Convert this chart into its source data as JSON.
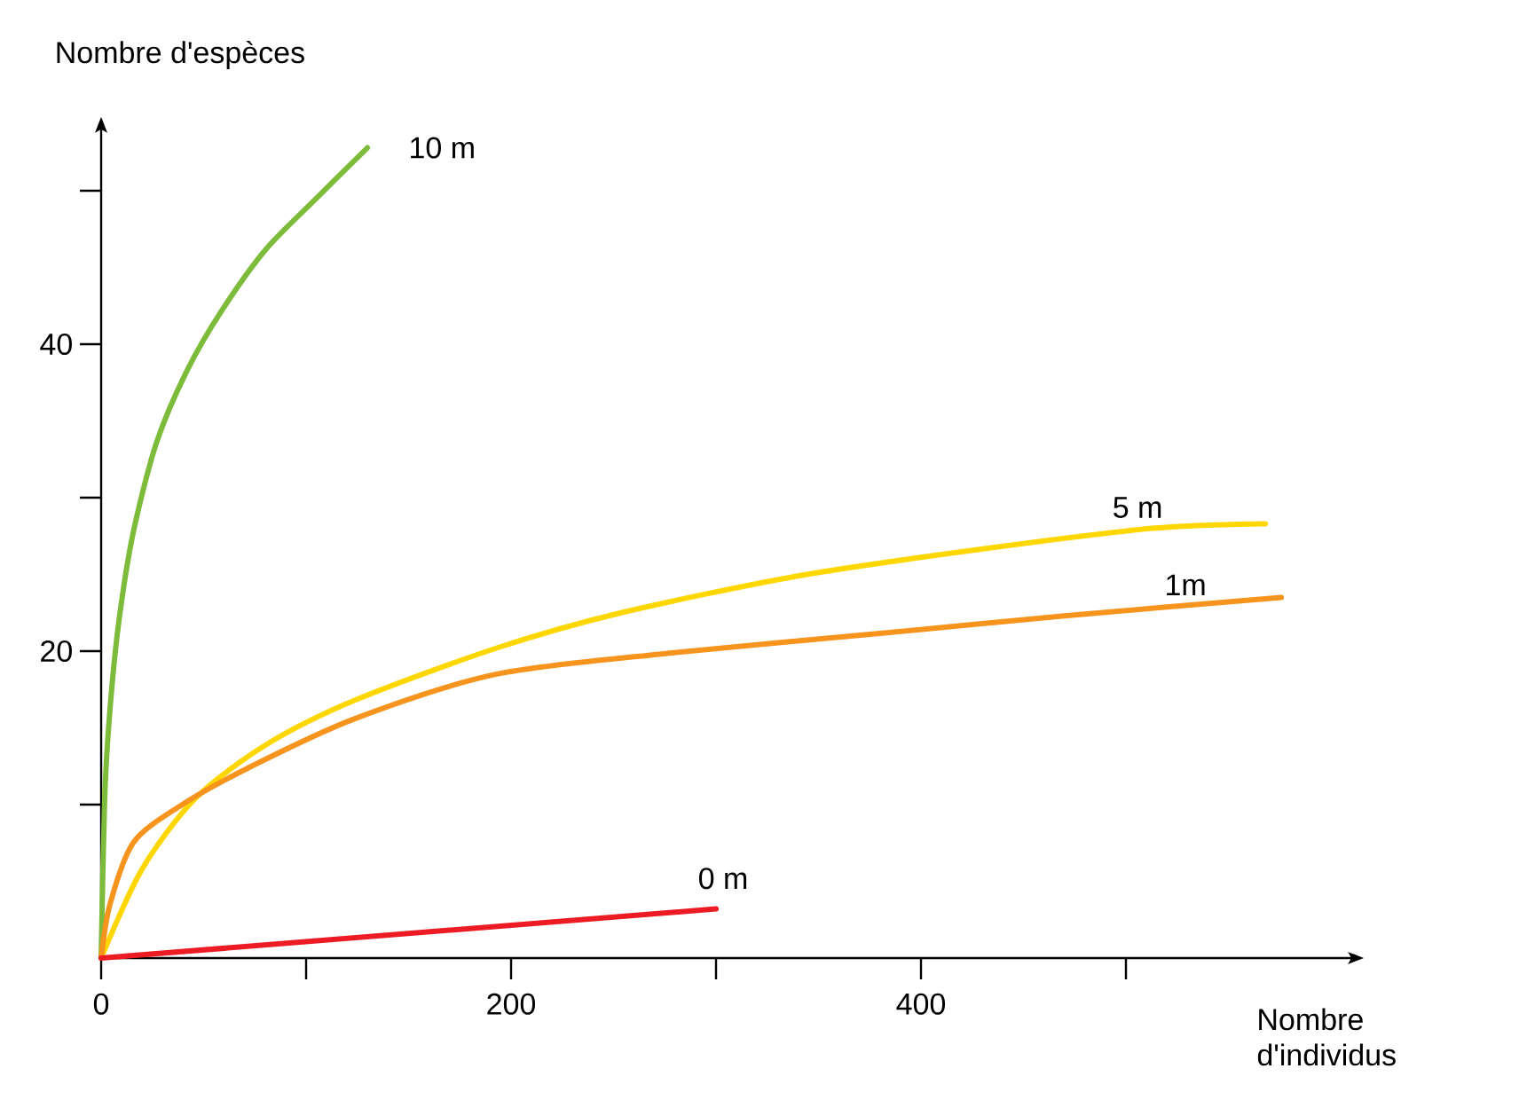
{
  "chart_data": {
    "type": "line",
    "xlabel": "Nombre d'individus",
    "ylabel": "Nombre d'espèces",
    "xlim": [
      0,
      610
    ],
    "ylim": [
      0,
      54
    ],
    "xticks": [
      0,
      {
        "value": 100,
        "label": null
      },
      200,
      {
        "value": 300,
        "label": null
      },
      400,
      {
        "value": 500,
        "label": null
      }
    ],
    "yticks": [
      {
        "value": 10,
        "label": null
      },
      20,
      {
        "value": 30,
        "label": null
      },
      40,
      {
        "value": 50,
        "label": null
      }
    ],
    "series": [
      {
        "name": "10 m",
        "color": "#7dbb3a",
        "x": [
          0,
          1.7,
          4.3,
          8.7,
          15.6,
          26.8,
          41.6,
          58.9,
          80.5,
          106.5,
          129.9
        ],
        "values": [
          0,
          10.4,
          16.2,
          22,
          27.7,
          33.5,
          38.2,
          42.2,
          46.2,
          49.7,
          52.8
        ]
      },
      {
        "name": "5 m",
        "color": "#ffd700",
        "x": [
          0,
          20,
          45.9,
          80.5,
          123.8,
          193,
          253.7,
          340,
          427,
          513,
          568
        ],
        "values": [
          0,
          5.8,
          10.4,
          13.9,
          16.8,
          20.2,
          22.5,
          24.9,
          26.6,
          28,
          28.3
        ]
      },
      {
        "name": "1m",
        "color": "#f7941d",
        "x": [
          0,
          4.3,
          15.6,
          37.2,
          71.9,
          123.8,
          193,
          279.7,
          383.5,
          470,
          575.8
        ],
        "values": [
          0,
          3.5,
          7.5,
          9.8,
          12.4,
          15.6,
          18.5,
          19.9,
          21.2,
          22.3,
          23.5
        ]
      },
      {
        "name": "0 m",
        "color": "#ed1c24",
        "x": [
          0,
          300
        ],
        "values": [
          0,
          3.2
        ]
      }
    ]
  }
}
